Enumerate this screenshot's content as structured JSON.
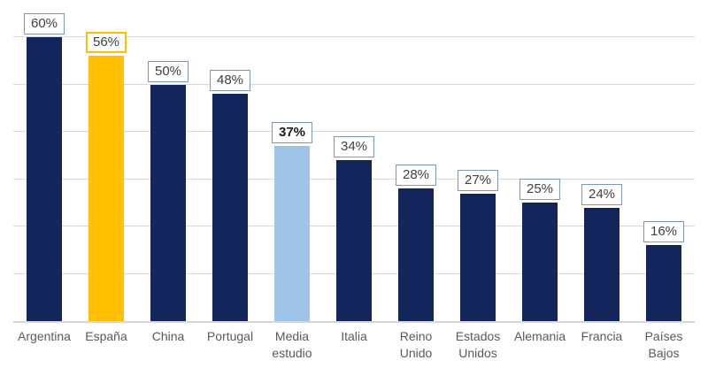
{
  "chart_data": {
    "type": "bar",
    "title": "",
    "xlabel": "",
    "ylabel": "",
    "ylim": [
      0,
      68
    ],
    "grid": true,
    "gridline_values": [
      10,
      20,
      30,
      40,
      50,
      60
    ],
    "legend": false,
    "categories": [
      "Argentina",
      "España",
      "China",
      "Portugal",
      "Media estudio",
      "Italia",
      "Reino Unido",
      "Estados Unidos",
      "Alemania",
      "Francia",
      "Países Bajos"
    ],
    "values": [
      60,
      56,
      50,
      48,
      37,
      34,
      28,
      27,
      25,
      24,
      16
    ],
    "bars": [
      {
        "category": "Argentina",
        "value": 60,
        "label": "60%",
        "bar_color": "#13265c",
        "label_border_color": "#7f96b2",
        "highlight": false,
        "bold_label": false
      },
      {
        "category": "España",
        "value": 56,
        "label": "56%",
        "bar_color": "#ffc000",
        "label_border_color": "#ffc000",
        "highlight": true,
        "bold_label": false
      },
      {
        "category": "China",
        "value": 50,
        "label": "50%",
        "bar_color": "#13265c",
        "label_border_color": "#7f96b2",
        "highlight": false,
        "bold_label": false
      },
      {
        "category": "Portugal",
        "value": 48,
        "label": "48%",
        "bar_color": "#13265c",
        "label_border_color": "#7f96b2",
        "highlight": false,
        "bold_label": false
      },
      {
        "category": "Media estudio",
        "value": 37,
        "label": "37%",
        "bar_color": "#9dc3e6",
        "label_border_color": "#7f96b2",
        "highlight": false,
        "bold_label": true
      },
      {
        "category": "Italia",
        "value": 34,
        "label": "34%",
        "bar_color": "#13265c",
        "label_border_color": "#7f96b2",
        "highlight": false,
        "bold_label": false
      },
      {
        "category": "Reino Unido",
        "value": 28,
        "label": "28%",
        "bar_color": "#13265c",
        "label_border_color": "#7f96b2",
        "highlight": false,
        "bold_label": false
      },
      {
        "category": "Estados Unidos",
        "value": 27,
        "label": "27%",
        "bar_color": "#13265c",
        "label_border_color": "#7f96b2",
        "highlight": false,
        "bold_label": false
      },
      {
        "category": "Alemania",
        "value": 25,
        "label": "25%",
        "bar_color": "#13265c",
        "label_border_color": "#7f96b2",
        "highlight": false,
        "bold_label": false
      },
      {
        "category": "Francia",
        "value": 24,
        "label": "24%",
        "bar_color": "#13265c",
        "label_border_color": "#7f96b2",
        "highlight": false,
        "bold_label": false
      },
      {
        "category": "Países Bajos",
        "value": 16,
        "label": "16%",
        "bar_color": "#13265c",
        "label_border_color": "#7f96b2",
        "highlight": false,
        "bold_label": false
      }
    ],
    "colors": {
      "default_bar": "#13265c",
      "highlight_bar": "#ffc000",
      "average_bar": "#9dc3e6",
      "gridline": "#d9d9d9",
      "axis_line": "#d6d6d6",
      "value_label_text": "#3f3f3f",
      "value_label_border": "#7f96b2",
      "value_label_background": "#ffffff",
      "category_label_text": "#595959",
      "background": "#ffffff"
    }
  }
}
